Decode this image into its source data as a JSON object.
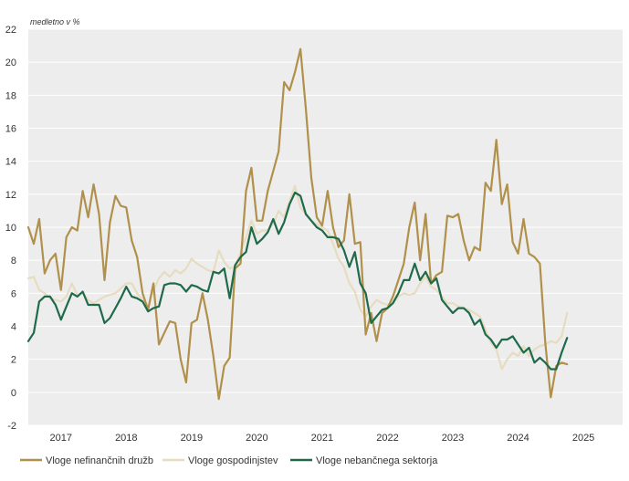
{
  "chart_data": {
    "type": "line",
    "unit_label": "medletno v %",
    "ylim": [
      -2,
      22
    ],
    "yticks": [
      -2,
      0,
      2,
      4,
      6,
      8,
      10,
      12,
      14,
      16,
      18,
      20,
      22
    ],
    "xlim": [
      2016.5,
      2025.6
    ],
    "xticks": [
      {
        "label": "2017",
        "pos": 2017.0
      },
      {
        "label": "2018",
        "pos": 2018.0
      },
      {
        "label": "2019",
        "pos": 2019.0
      },
      {
        "label": "2020",
        "pos": 2020.0
      },
      {
        "label": "2021",
        "pos": 2021.0
      },
      {
        "label": "2022",
        "pos": 2022.0
      },
      {
        "label": "2023",
        "pos": 2023.0
      },
      {
        "label": "2024",
        "pos": 2024.0
      },
      {
        "label": "2025",
        "pos": 2025.0
      }
    ],
    "grid": true,
    "legend_position": "bottom",
    "x_start": 2016.5,
    "x_step": 0.0833333,
    "series": [
      {
        "name": "Vloge nefinančnih družb",
        "color": "#b0904a",
        "values": [
          10.0,
          9.0,
          10.5,
          7.2,
          8.0,
          8.4,
          6.2,
          9.4,
          10.0,
          9.8,
          12.2,
          10.6,
          12.6,
          10.8,
          6.8,
          10.3,
          11.9,
          11.3,
          11.2,
          9.2,
          8.2,
          6.0,
          5.0,
          6.6,
          2.9,
          3.6,
          4.3,
          4.2,
          2.0,
          0.6,
          4.2,
          4.4,
          6.0,
          4.4,
          2.2,
          -0.4,
          1.6,
          2.1,
          7.5,
          7.8,
          12.2,
          13.6,
          10.4,
          10.4,
          12.2,
          13.4,
          14.6,
          18.8,
          18.3,
          19.4,
          20.8,
          17.2,
          13.0,
          10.6,
          10.1,
          12.2,
          10.0,
          8.8,
          9.2,
          12.0,
          9.0,
          9.1,
          3.5,
          4.8,
          3.1,
          4.8,
          5.1,
          5.8,
          6.8,
          7.8,
          10.0,
          11.5,
          8.0,
          10.8,
          6.6,
          7.1,
          7.3,
          10.7,
          10.6,
          10.8,
          9.2,
          8.0,
          8.8,
          8.6,
          12.7,
          12.2,
          15.3,
          11.4,
          12.6,
          9.1,
          8.4,
          10.5,
          8.4,
          8.2,
          7.8,
          3.0,
          -0.3,
          1.6,
          1.8,
          1.7
        ]
      },
      {
        "name": "Vloge gospodinjstev",
        "color": "#e6dcbf",
        "values": [
          6.9,
          7.0,
          6.2,
          6.0,
          5.7,
          5.6,
          5.5,
          5.8,
          6.6,
          5.9,
          6.0,
          5.6,
          5.4,
          5.6,
          5.8,
          5.9,
          6.0,
          6.3,
          6.6,
          6.6,
          6.0,
          5.6,
          5.2,
          6.2,
          6.9,
          7.3,
          7.0,
          7.4,
          7.2,
          7.5,
          8.1,
          7.8,
          7.6,
          7.4,
          7.3,
          8.6,
          7.9,
          7.5,
          7.6,
          8.5,
          9.4,
          10.4,
          9.6,
          9.8,
          9.8,
          10.2,
          11.0,
          10.6,
          11.6,
          12.5,
          11.2,
          10.8,
          10.4,
          10.2,
          10.0,
          9.8,
          9.0,
          8.1,
          7.6,
          6.6,
          6.1,
          5.0,
          4.6,
          5.2,
          5.6,
          5.4,
          5.3,
          5.4,
          5.8,
          6.0,
          5.9,
          6.0,
          6.6,
          7.0,
          6.4,
          6.2,
          5.8,
          5.4,
          5.4,
          5.2,
          5.1,
          5.0,
          4.8,
          4.6,
          3.8,
          3.0,
          2.6,
          1.4,
          2.0,
          2.4,
          2.2,
          2.8,
          2.2,
          2.6,
          2.8,
          2.9,
          3.1,
          3.0,
          3.4,
          4.8
        ]
      },
      {
        "name": "Vloge nebančnega sektorja",
        "color": "#1f6a4b",
        "values": [
          3.1,
          3.6,
          5.5,
          5.8,
          5.8,
          5.3,
          4.4,
          5.2,
          6.0,
          5.8,
          6.1,
          5.3,
          5.3,
          5.3,
          4.2,
          4.5,
          5.1,
          5.7,
          6.4,
          5.8,
          5.7,
          5.5,
          4.9,
          5.1,
          5.2,
          6.5,
          6.6,
          6.6,
          6.5,
          6.1,
          6.5,
          6.4,
          6.2,
          6.1,
          7.3,
          7.2,
          7.5,
          5.7,
          7.7,
          8.2,
          8.5,
          10.0,
          9.0,
          9.3,
          9.7,
          10.5,
          9.6,
          10.3,
          11.4,
          12.1,
          11.9,
          10.8,
          10.4,
          10.0,
          9.8,
          9.4,
          9.4,
          9.3,
          8.6,
          7.6,
          8.5,
          6.6,
          6.0,
          4.2,
          4.6,
          5.0,
          5.1,
          5.4,
          6.0,
          6.8,
          6.8,
          7.8,
          6.8,
          7.3,
          6.6,
          6.9,
          5.6,
          5.2,
          4.8,
          5.1,
          5.1,
          4.8,
          4.1,
          4.4,
          3.5,
          3.2,
          2.7,
          3.2,
          3.2,
          3.4,
          2.9,
          2.4,
          2.7,
          1.8,
          2.1,
          1.8,
          1.4,
          1.4,
          2.4,
          3.3
        ]
      }
    ]
  }
}
